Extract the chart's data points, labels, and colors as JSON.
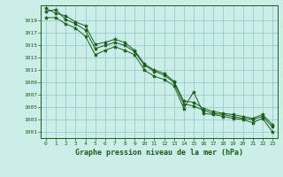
{
  "title": "Graphe pression niveau de la mer (hPa)",
  "background_color": "#cceee8",
  "grid_color": "#99cccc",
  "line_color": "#1a5c1a",
  "marker_color": "#1a5c1a",
  "xlim": [
    -0.5,
    23.5
  ],
  "ylim": [
    1000.0,
    1021.5
  ],
  "yticks": [
    1001,
    1003,
    1005,
    1007,
    1009,
    1011,
    1013,
    1015,
    1017,
    1019
  ],
  "xticks": [
    0,
    1,
    2,
    3,
    4,
    5,
    6,
    7,
    8,
    9,
    10,
    11,
    12,
    13,
    14,
    15,
    16,
    17,
    18,
    19,
    20,
    21,
    22,
    23
  ],
  "series": [
    [
      1020.5,
      1020.8,
      1019.2,
      1018.5,
      1017.5,
      1014.5,
      1015.0,
      1015.5,
      1015.0,
      1014.0,
      1011.8,
      1010.8,
      1010.2,
      1009.0,
      1005.5,
      1005.2,
      1004.5,
      1004.0,
      1003.8,
      1003.5,
      1003.2,
      1003.0,
      1003.5,
      1001.8
    ],
    [
      1021.0,
      1020.2,
      1019.8,
      1018.8,
      1018.2,
      1015.2,
      1015.5,
      1016.0,
      1015.5,
      1014.2,
      1012.0,
      1011.0,
      1010.5,
      1009.2,
      1006.0,
      1005.8,
      1004.8,
      1004.3,
      1004.0,
      1003.8,
      1003.5,
      1003.2,
      1003.8,
      1002.2
    ],
    [
      1019.5,
      1019.5,
      1018.5,
      1017.8,
      1016.5,
      1013.5,
      1014.2,
      1014.8,
      1014.2,
      1013.5,
      1011.0,
      1010.0,
      1009.5,
      1008.5,
      1004.8,
      1007.5,
      1004.0,
      1003.8,
      1003.5,
      1003.2,
      1003.0,
      1002.5,
      1003.2,
      1001.0
    ]
  ]
}
